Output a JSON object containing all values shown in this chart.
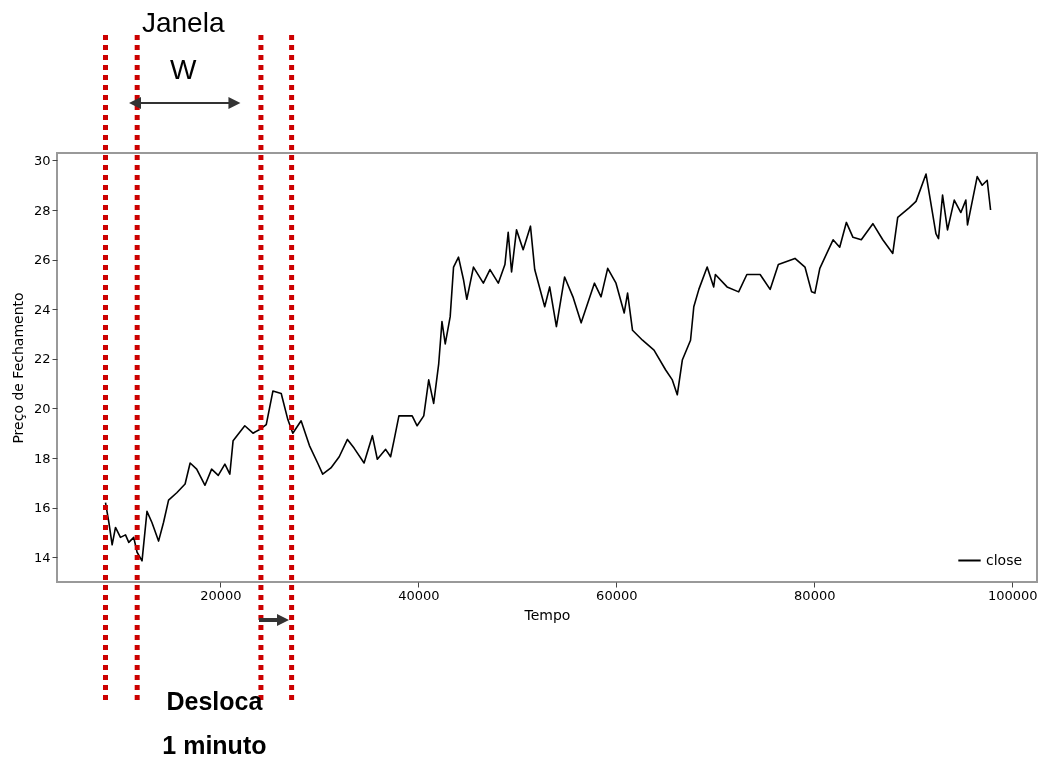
{
  "chart_data": {
    "type": "line",
    "xlabel": "Tempo",
    "ylabel": "Preço de Fechamento",
    "xlim": [
      3500,
      102500
    ],
    "xticks": [
      20000,
      40000,
      60000,
      80000,
      100000
    ],
    "ylim": [
      13.0,
      30.3
    ],
    "yticks": [
      14,
      16,
      18,
      20,
      22,
      24,
      26,
      28,
      30
    ],
    "grid": false,
    "legend": "bottom right",
    "annotations": [
      "Janela\nW",
      "Desloca\n1 minuto"
    ],
    "ref_lines": [
      {
        "axis": "x",
        "value": 8400,
        "label": null,
        "color": "#cc0000",
        "line_style": "dotted"
      },
      {
        "axis": "x",
        "value": 11600,
        "label": null,
        "color": "#cc0000",
        "line_style": "dotted"
      },
      {
        "axis": "x",
        "value": 24100,
        "label": null,
        "color": "#cc0000",
        "line_style": "dotted"
      },
      {
        "axis": "x",
        "value": 27200,
        "label": null,
        "color": "#cc0000",
        "line_style": "dotted"
      }
    ],
    "series": [
      {
        "name": "close",
        "color": "#000000",
        "x": [
          8400,
          8740,
          9070,
          9410,
          9910,
          10420,
          10750,
          11250,
          11590,
          12090,
          12590,
          13090,
          13760,
          14260,
          14770,
          15600,
          16440,
          16950,
          17610,
          18450,
          19120,
          19790,
          20460,
          20960,
          21290,
          22470,
          23300,
          23970,
          24640,
          25310,
          26150,
          26820,
          27320,
          28160,
          29000,
          29830,
          30340,
          31170,
          32010,
          32840,
          33510,
          34520,
          35360,
          35860,
          36700,
          37200,
          37540,
          38040,
          39380,
          39880,
          40550,
          41050,
          41550,
          42060,
          42390,
          42720,
          43220,
          43560,
          44060,
          44560,
          44900,
          45570,
          46570,
          47240,
          48080,
          48750,
          49080,
          49420,
          49920,
          50590,
          51330,
          51760,
          52770,
          53270,
          53950,
          54780,
          55620,
          56450,
          57790,
          58460,
          59130,
          59970,
          60800,
          61140,
          61640,
          62650,
          63810,
          64990,
          65660,
          66160,
          66670,
          67500,
          67830,
          68340,
          69180,
          69840,
          70010,
          71190,
          72360,
          73190,
          74530,
          75540,
          76370,
          78050,
          79060,
          79730,
          80060,
          80560,
          81900,
          82570,
          83240,
          83910,
          84750,
          85920,
          86920,
          87930,
          88430,
          89610,
          90280,
          91290,
          92290,
          92550,
          92960,
          93460,
          94140,
          94810,
          95310,
          95480,
          96460,
          96960,
          97470,
          97810
        ],
        "values": [
          16.2,
          15.4,
          14.5,
          15.2,
          14.8,
          14.9,
          14.6,
          14.8,
          14.2,
          13.85,
          15.85,
          15.4,
          14.65,
          15.4,
          16.3,
          16.6,
          16.95,
          17.8,
          17.55,
          16.9,
          17.55,
          17.3,
          17.75,
          17.35,
          18.7,
          19.3,
          19.0,
          19.15,
          19.35,
          20.7,
          20.6,
          19.55,
          19.0,
          19.5,
          18.5,
          17.8,
          17.35,
          17.6,
          18.05,
          18.75,
          18.4,
          17.8,
          18.9,
          17.95,
          18.35,
          18.05,
          18.7,
          19.7,
          19.7,
          19.3,
          19.7,
          21.15,
          20.2,
          21.8,
          23.5,
          22.6,
          23.7,
          25.7,
          26.1,
          25.2,
          24.4,
          25.7,
          25.05,
          25.6,
          25.05,
          25.8,
          27.1,
          25.5,
          27.2,
          26.4,
          27.35,
          25.6,
          24.1,
          24.9,
          23.3,
          25.3,
          24.5,
          23.45,
          25.05,
          24.5,
          25.65,
          25.05,
          23.85,
          24.65,
          23.15,
          22.75,
          22.35,
          21.55,
          21.15,
          20.55,
          21.95,
          22.75,
          24.1,
          24.8,
          25.7,
          24.9,
          25.4,
          24.9,
          24.7,
          25.4,
          25.4,
          24.8,
          25.8,
          26.05,
          25.7,
          24.7,
          24.65,
          25.65,
          26.8,
          26.5,
          27.5,
          26.9,
          26.8,
          27.45,
          26.8,
          26.25,
          27.7,
          28.1,
          28.35,
          29.45,
          27.05,
          26.85,
          28.6,
          27.2,
          28.4,
          27.9,
          28.4,
          27.4,
          29.35,
          29.0,
          29.2,
          28.0
        ]
      }
    ]
  }
}
